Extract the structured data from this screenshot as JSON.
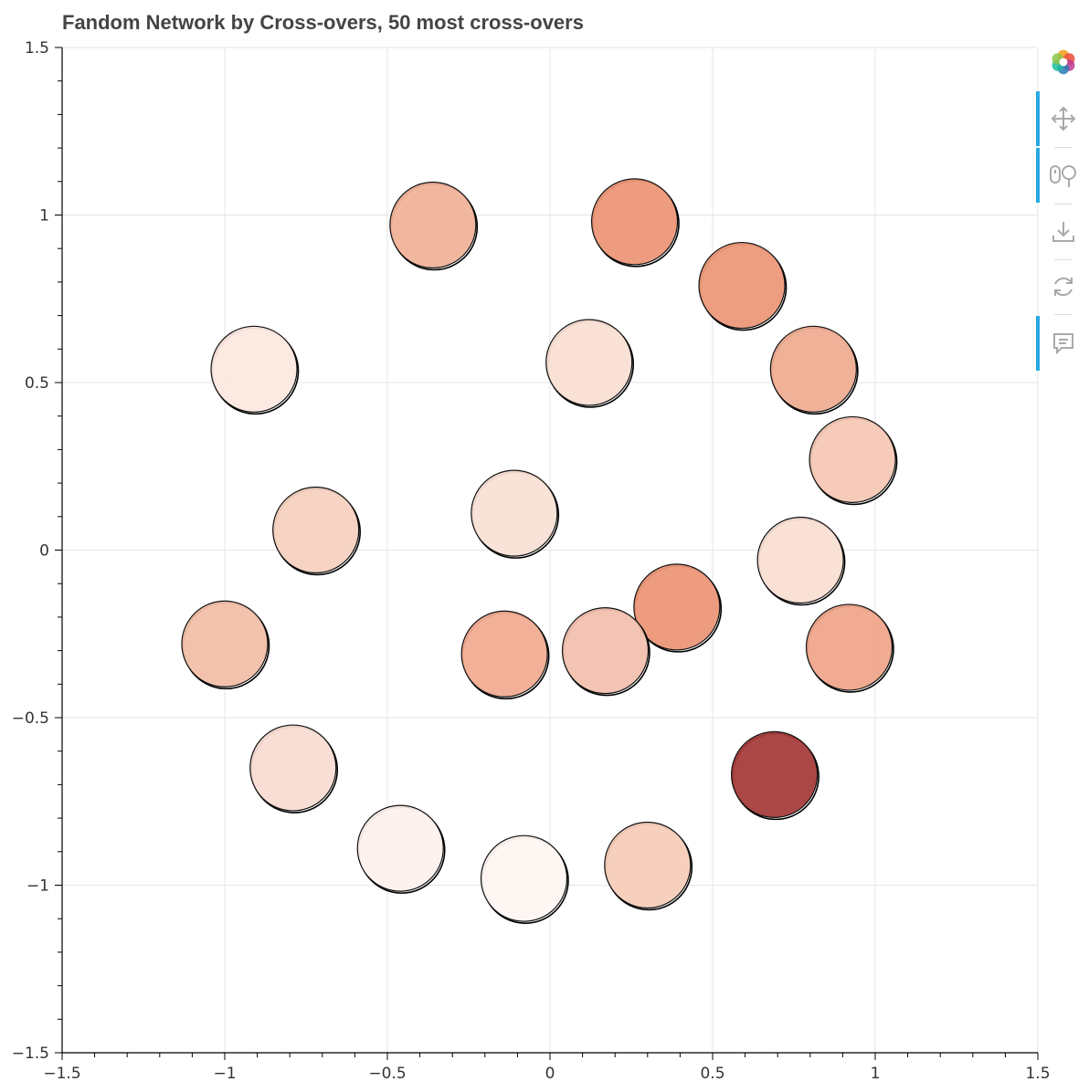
{
  "title": "Fandom Network by Cross-overs, 50 most cross-overs",
  "toolbar": {
    "items": [
      {
        "name": "bokeh-logo-icon"
      },
      {
        "name": "pan-tool-icon",
        "active": true
      },
      {
        "name": "wheel-zoom-tool-icon",
        "active": true
      },
      {
        "name": "save-tool-icon",
        "active": false
      },
      {
        "name": "reset-tool-icon",
        "active": false
      },
      {
        "name": "hover-tool-icon",
        "active": true
      }
    ],
    "active_color": "#26aae1",
    "icon_color": "#a9a9a9"
  },
  "chart_data": {
    "type": "scatter",
    "title": "Fandom Network by Cross-overs, 50 most cross-overs",
    "xlabel": "",
    "ylabel": "",
    "xlim": [
      -1.5,
      1.5
    ],
    "ylim": [
      -1.5,
      1.5
    ],
    "grid": true,
    "x_ticks": [
      -1.5,
      -1,
      -0.5,
      0,
      0.5,
      1,
      1.5
    ],
    "x_tick_labels": [
      "−1.5",
      "−1",
      "−0.5",
      "0",
      "0.5",
      "1",
      "1.5"
    ],
    "y_ticks": [
      -1.5,
      -1,
      -0.5,
      0,
      0.5,
      1,
      1.5
    ],
    "y_tick_labels": [
      "−1.5",
      "−1",
      "−0.5",
      "0",
      "0.5",
      "1",
      "1.5"
    ],
    "node_radius": 0.2,
    "nodes": [
      {
        "x": -0.36,
        "y": 0.97,
        "color": "#f0b198"
      },
      {
        "x": 0.26,
        "y": 0.98,
        "color": "#ec9678"
      },
      {
        "x": 0.59,
        "y": 0.79,
        "color": "#ec9879"
      },
      {
        "x": -0.91,
        "y": 0.54,
        "color": "#fce8df"
      },
      {
        "x": 0.12,
        "y": 0.56,
        "color": "#f9dfd3"
      },
      {
        "x": 0.81,
        "y": 0.54,
        "color": "#efac93"
      },
      {
        "x": 0.93,
        "y": 0.27,
        "color": "#f5c8b5"
      },
      {
        "x": -0.72,
        "y": 0.06,
        "color": "#f5d0bf"
      },
      {
        "x": -0.11,
        "y": 0.11,
        "color": "#f9e0d4"
      },
      {
        "x": 0.77,
        "y": -0.03,
        "color": "#f9dfd3"
      },
      {
        "x": 0.39,
        "y": -0.17,
        "color": "#ec9678"
      },
      {
        "x": -1.0,
        "y": -0.28,
        "color": "#f2bea7"
      },
      {
        "x": -0.14,
        "y": -0.31,
        "color": "#f0ab91"
      },
      {
        "x": 0.17,
        "y": -0.3,
        "color": "#f2c0ae"
      },
      {
        "x": 0.92,
        "y": -0.29,
        "color": "#efa68b"
      },
      {
        "x": -0.79,
        "y": -0.65,
        "color": "#f8dcd1"
      },
      {
        "x": 0.69,
        "y": -0.67,
        "color": "#a63c3a"
      },
      {
        "x": -0.46,
        "y": -0.89,
        "color": "#fdf1ec"
      },
      {
        "x": -0.08,
        "y": -0.98,
        "color": "#fef5f1"
      },
      {
        "x": 0.3,
        "y": -0.94,
        "color": "#f5cdb9"
      }
    ]
  }
}
